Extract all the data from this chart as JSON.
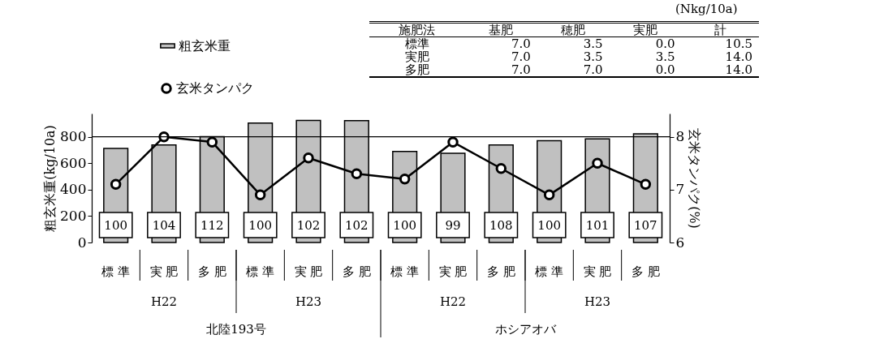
{
  "chart_data": {
    "type": "bar",
    "ylabel": "粗玄米重(kg/10a)",
    "y2label": "玄米タンパク(%)",
    "categories": [
      "標 準",
      "実 肥",
      "多 肥",
      "標 準",
      "実 肥",
      "多 肥",
      "標 準",
      "実 肥",
      "多 肥",
      "標 準",
      "実 肥",
      "多 肥"
    ],
    "series": [
      {
        "name": "粗玄米重",
        "color": "#c0c0c0",
        "values": [
          712,
          737,
          800,
          903,
          923,
          921,
          688,
          675,
          737,
          770,
          783,
          822
        ]
      },
      {
        "name": "玄米タンパク",
        "type": "line",
        "axis": "y2",
        "color": "#000000",
        "values": [
          7.1,
          8.0,
          7.9,
          6.9,
          7.6,
          7.3,
          7.2,
          7.9,
          7.4,
          6.9,
          7.5,
          7.1
        ]
      }
    ],
    "ylim": [
      0,
      975
    ],
    "yticks": [
      0,
      200,
      400,
      600,
      800
    ],
    "y2lim": [
      6,
      8.44
    ],
    "y2ticks": [
      6,
      7,
      8
    ],
    "ref_lines": [
      {
        "axis": "y",
        "value": 800
      }
    ],
    "legend": "top left",
    "marker": "circle",
    "annotations": [
      "(Nkg/10a)",
      "施肥法 基肥 穂肥 実肥 計",
      "標準 7.0 3.5 0.0 10.5",
      "実肥 7.0 3.5 3.5 14.0",
      "多肥 7.0 7.0 0.0 14.0",
      "H22",
      "H23",
      "H22",
      "H23",
      "北陸193号",
      "ホシアオバ",
      "100",
      "104",
      "112",
      "100",
      "102",
      "102",
      "100",
      "99",
      "108",
      "100",
      "101",
      "107"
    ]
  }
}
